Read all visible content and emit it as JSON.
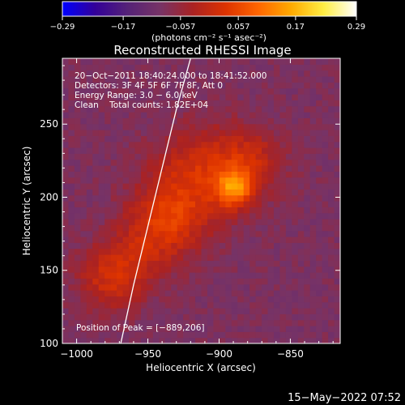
{
  "chart_data": {
    "type": "heatmap",
    "title": "Reconstructed RHESSI Image",
    "xlabel": "Heliocentric X (arcsec)",
    "ylabel": "Heliocentric Y (arcsec)",
    "xlim": [
      -1010,
      -815
    ],
    "ylim": [
      100,
      295
    ],
    "x_ticks": [
      -1000,
      -950,
      -900,
      -850
    ],
    "x_tick_labels": [
      "−1000",
      "−950",
      "−900",
      "−850"
    ],
    "y_ticks": [
      100,
      150,
      200,
      250
    ],
    "y_tick_labels": [
      "100",
      "150",
      "200",
      "250"
    ],
    "colorbar": {
      "min": -0.29,
      "max": 0.29,
      "ticks": [
        -0.29,
        -0.17,
        -0.057,
        0.057,
        0.17,
        0.29
      ],
      "tick_labels": [
        "−0.29",
        "−0.17",
        "−0.057",
        "0.057",
        "0.17",
        "0.29"
      ],
      "colormap": [
        "#0000ff",
        "#330099",
        "#552277",
        "#773366",
        "#aa2222",
        "#dd3300",
        "#ff6600",
        "#ffaa00",
        "#ffee44",
        "#ffffff"
      ]
    },
    "units_label": "(photons cm⁻² s⁻¹ asec⁻²)",
    "annotations": [
      "20−Oct−2011 18:40:24.000 to 18:41:52.000",
      "Detectors: 3F 4F 5F 6F 7F 8F, Att 0",
      "Energy Range: 3.0 − 6.0 keV",
      "Clean    Total counts: 1.82E+04"
    ],
    "peak_label": "Position of Peak = [−889,206]",
    "peak": [
      -889,
      206
    ],
    "sources": [
      {
        "x": -889,
        "y": 206,
        "sx": 9,
        "sy": 9,
        "amp": 0.17
      },
      {
        "x": -905,
        "y": 222,
        "sx": 26,
        "sy": 20,
        "amp": 0.1
      },
      {
        "x": -930,
        "y": 190,
        "sx": 20,
        "sy": 20,
        "amp": 0.09
      },
      {
        "x": -945,
        "y": 180,
        "sx": 18,
        "sy": 14,
        "amp": 0.06
      },
      {
        "x": -975,
        "y": 142,
        "sx": 17,
        "sy": 15,
        "amp": 0.09
      },
      {
        "x": -962,
        "y": 158,
        "sx": 20,
        "sy": 12,
        "amp": 0.05
      },
      {
        "x": -875,
        "y": 225,
        "sx": 14,
        "sy": 14,
        "amp": 0.05
      }
    ],
    "background": -0.09,
    "limb_curve": [
      [
        -969,
        100
      ],
      [
        -960,
        140
      ],
      [
        -950,
        180
      ],
      [
        -940,
        220
      ],
      [
        -930,
        260
      ],
      [
        -920,
        295
      ]
    ],
    "grid": false
  },
  "footer": {
    "timestamp": "15−May−2022 07:52"
  }
}
